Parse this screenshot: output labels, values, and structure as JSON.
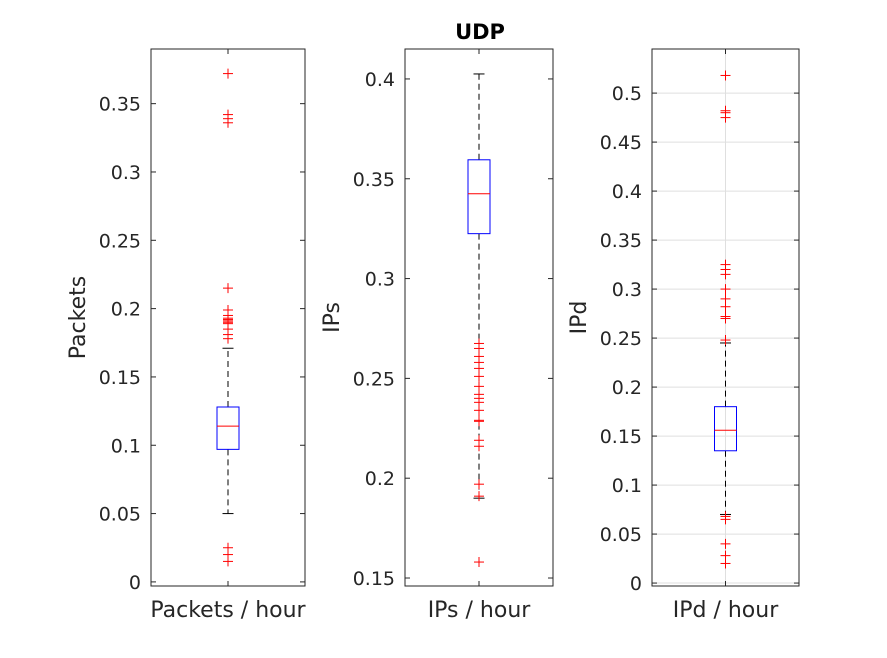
{
  "chart_data": {
    "type": "box",
    "title": "UDP",
    "panels": [
      {
        "category": "Packets / hour",
        "ylabel": "Packets",
        "ylim": [
          -0.003,
          0.39
        ],
        "yticks": [
          0,
          0.05,
          0.1,
          0.15,
          0.2,
          0.25,
          0.3,
          0.35
        ],
        "ytick_labels": [
          "0",
          "0.05",
          "0.1",
          "0.15",
          "0.2",
          "0.25",
          "0.3",
          "0.35"
        ],
        "grid": false,
        "box": {
          "whisker_low": 0.05,
          "q1": 0.097,
          "median": 0.114,
          "q3": 0.128,
          "whisker_high": 0.171
        },
        "outliers": [
          0.372,
          0.342,
          0.339,
          0.336,
          0.215,
          0.199,
          0.195,
          0.193,
          0.192,
          0.191,
          0.19,
          0.189,
          0.185,
          0.181,
          0.178,
          0.025,
          0.02,
          0.015
        ]
      },
      {
        "category": "IPs / hour",
        "ylabel": "IPs",
        "ylim": [
          0.146,
          0.415
        ],
        "yticks": [
          0.15,
          0.2,
          0.25,
          0.3,
          0.35,
          0.4
        ],
        "ytick_labels": [
          "0.15",
          "0.2",
          "0.25",
          "0.3",
          "0.35",
          "0.4"
        ],
        "grid": false,
        "box": {
          "whisker_low": 0.19,
          "q1": 0.3225,
          "median": 0.3425,
          "q3": 0.3595,
          "whisker_high": 0.4025
        },
        "outliers": [
          0.2675,
          0.265,
          0.261,
          0.258,
          0.255,
          0.251,
          0.246,
          0.242,
          0.24,
          0.238,
          0.234,
          0.229,
          0.2285,
          0.219,
          0.216,
          0.197,
          0.191,
          0.158
        ]
      },
      {
        "category": "IPd / hour",
        "ylabel": "IPd",
        "ylim": [
          -0.003,
          0.545
        ],
        "yticks": [
          0,
          0.05,
          0.1,
          0.15,
          0.2,
          0.25,
          0.3,
          0.35,
          0.4,
          0.45,
          0.5
        ],
        "ytick_labels": [
          "0",
          "0.05",
          "0.1",
          "0.15",
          "0.2",
          "0.25",
          "0.3",
          "0.35",
          "0.4",
          "0.45",
          "0.5"
        ],
        "grid": true,
        "box": {
          "whisker_low": 0.07,
          "q1": 0.135,
          "median": 0.156,
          "q3": 0.18,
          "whisker_high": 0.245
        },
        "outliers": [
          0.518,
          0.482,
          0.48,
          0.475,
          0.325,
          0.32,
          0.315,
          0.3,
          0.29,
          0.282,
          0.272,
          0.27,
          0.248,
          0.068,
          0.065,
          0.04,
          0.028,
          0.02
        ]
      }
    ]
  },
  "colors": {
    "box": "#0000ff",
    "median": "#ff0000",
    "outlier": "#ff0000",
    "whisker": "#000000",
    "axis": "#262626",
    "grid": "#dfdfdf"
  }
}
